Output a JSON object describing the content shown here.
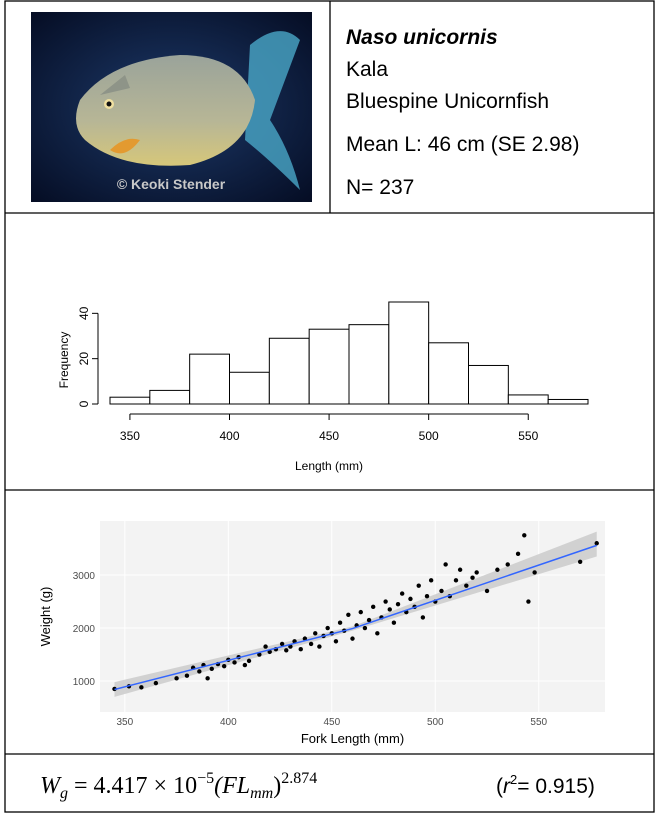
{
  "species": {
    "scientific_name": "Naso unicornis",
    "local_name": "Kala",
    "common_name": "Bluespine Unicornfish",
    "mean_length": "Mean L: 46 cm (SE 2.98)",
    "sample_size": "N= 237",
    "photo_credit": "© Keoki Stender"
  },
  "chart_data": [
    {
      "type": "histogram",
      "xlabel": "Length (mm)",
      "ylabel": "Frequency",
      "bins": [
        340,
        360,
        380,
        400,
        420,
        440,
        460,
        480,
        500,
        520,
        540,
        560,
        580
      ],
      "values": [
        3,
        6,
        22,
        14,
        29,
        33,
        35,
        45,
        27,
        17,
        4,
        2
      ],
      "xlim": [
        340,
        580
      ],
      "ylim": [
        0,
        45
      ],
      "xticks": [
        350,
        400,
        450,
        500,
        550
      ],
      "yticks": [
        0,
        20,
        40
      ]
    },
    {
      "type": "scatter",
      "xlabel": "Fork Length (mm)",
      "ylabel": "Weight (g)",
      "x": [
        345,
        352,
        358,
        365,
        375,
        380,
        383,
        386,
        388,
        390,
        392,
        395,
        398,
        400,
        403,
        405,
        408,
        410,
        415,
        418,
        420,
        423,
        426,
        428,
        430,
        432,
        435,
        437,
        440,
        442,
        444,
        446,
        448,
        450,
        452,
        454,
        456,
        458,
        460,
        462,
        464,
        466,
        468,
        470,
        472,
        474,
        476,
        478,
        480,
        482,
        484,
        486,
        488,
        490,
        492,
        494,
        496,
        498,
        500,
        503,
        505,
        507,
        510,
        512,
        515,
        518,
        520,
        525,
        530,
        535,
        540,
        543,
        545,
        548,
        570,
        578
      ],
      "values": [
        850,
        900,
        880,
        960,
        1050,
        1100,
        1250,
        1180,
        1300,
        1050,
        1230,
        1320,
        1280,
        1400,
        1350,
        1450,
        1300,
        1380,
        1500,
        1650,
        1550,
        1600,
        1700,
        1580,
        1650,
        1750,
        1600,
        1800,
        1700,
        1900,
        1650,
        1850,
        2000,
        1900,
        1750,
        2100,
        1950,
        2250,
        1800,
        2050,
        2300,
        2000,
        2150,
        2400,
        1900,
        2200,
        2500,
        2350,
        2100,
        2450,
        2650,
        2300,
        2550,
        2400,
        2800,
        2200,
        2600,
        2900,
        2500,
        2700,
        3200,
        2600,
        2900,
        3100,
        2800,
        2950,
        3050,
        2700,
        3100,
        3200,
        3400,
        3750,
        2500,
        3050,
        3250,
        3600
      ],
      "fit": {
        "x": [
          345,
          460,
          578
        ],
        "values": [
          840,
          1990,
          3560
        ],
        "lower": [
          700,
          1950,
          3350
        ],
        "upper": [
          980,
          2030,
          3820
        ],
        "color": "#3366ff"
      },
      "xlim": [
        338,
        582
      ],
      "ylim": [
        415,
        4020
      ],
      "xticks": [
        350,
        400,
        450,
        500,
        550
      ],
      "yticks": [
        1000,
        2000,
        3000
      ]
    }
  ],
  "equation": {
    "w": "W",
    "w_sub": "g",
    "coef": "=  4.417 × 10",
    "coef_exp": "−5",
    "fl": "(FL",
    "fl_sub": "mm",
    "close": ")",
    "power": "2.874",
    "r_open": "(",
    "r": "r",
    "r_sup": "2",
    "r_value": "= 0.915)"
  }
}
